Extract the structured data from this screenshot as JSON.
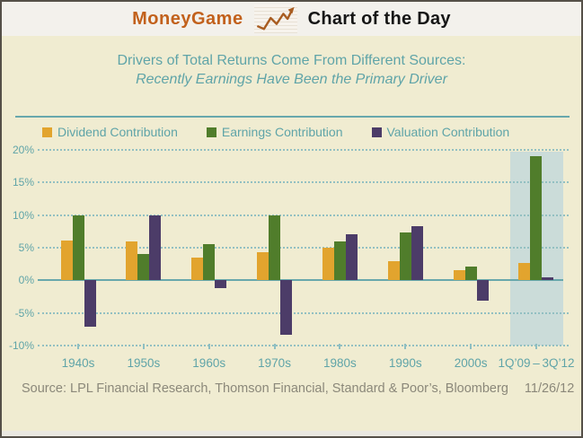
{
  "header": {
    "brand": "MoneyGame",
    "title": "Chart of the Day",
    "brand_color": "#c2611c",
    "icon": "line-chart-arrow-icon"
  },
  "chart_data": {
    "type": "bar",
    "title": "Drivers of Total Returns Come From Different Sources:",
    "subtitle": "Recently Earnings Have Been the Primary Driver",
    "categories": [
      "1940s",
      "1950s",
      "1960s",
      "1970s",
      "1980s",
      "1990s",
      "2000s",
      "1Q’09 – 3Q’12"
    ],
    "series": [
      {
        "name": "Dividend Contribution",
        "color": "#e2a42e",
        "values": [
          6.1,
          5.9,
          3.5,
          4.3,
          5.0,
          3.0,
          1.5,
          2.6
        ]
      },
      {
        "name": "Earnings Contribution",
        "color": "#507d2b",
        "values": [
          10.0,
          4.1,
          5.6,
          10.0,
          5.9,
          7.4,
          2.1,
          19.0
        ]
      },
      {
        "name": "Valuation Contribution",
        "color": "#4c3c68",
        "values": [
          -7.1,
          10.0,
          -1.2,
          -8.4,
          7.1,
          8.3,
          -3.1,
          0.5
        ]
      }
    ],
    "ylim": [
      -10,
      20
    ],
    "ytick_values": [
      20,
      15,
      10,
      5,
      0,
      -5,
      -10
    ],
    "yticks": [
      "20%",
      "15%",
      "10%",
      "5%",
      "0%",
      "-5%",
      "-10%"
    ],
    "highlight_category_index": 7,
    "highlight_color": "#cbdcd9",
    "legend_position": "top",
    "grid": "dotted horizontal, solid zero line",
    "accent_teal": "#5fa4a8",
    "axis_line_color": "#68a8ac"
  },
  "footer": {
    "source": "Source: LPL Financial Research, Thomson Financial, Standard & Poor’s, Bloomberg",
    "date": "11/26/12"
  }
}
